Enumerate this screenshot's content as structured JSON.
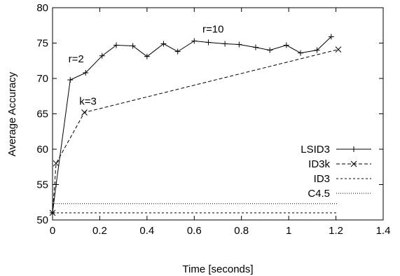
{
  "chart_data": {
    "type": "line",
    "xlabel": "Time [seconds]",
    "ylabel": "Average Accuracy",
    "xlim": [
      0,
      1.4
    ],
    "ylim": [
      50,
      80
    ],
    "xticks": [
      "0",
      "0.2",
      "0.4",
      "0.6",
      "0.8",
      "1",
      "1.2",
      "1.4"
    ],
    "yticks": [
      "50",
      "55",
      "60",
      "65",
      "70",
      "75",
      "80"
    ],
    "grid": false,
    "legend_position": "right",
    "series": [
      {
        "name": "LSID3",
        "style": "solid",
        "marker": "plus",
        "x": [
          0.0,
          0.015,
          0.075,
          0.14,
          0.21,
          0.27,
          0.34,
          0.4,
          0.47,
          0.53,
          0.6,
          0.66,
          0.73,
          0.79,
          0.86,
          0.92,
          0.99,
          1.05,
          1.12,
          1.18
        ],
        "y": [
          51.0,
          55.0,
          69.8,
          70.8,
          73.2,
          74.7,
          74.6,
          73.1,
          74.9,
          73.8,
          75.3,
          75.1,
          74.9,
          74.8,
          74.4,
          74.0,
          74.7,
          73.6,
          74.0,
          75.9
        ]
      },
      {
        "name": "ID3k",
        "style": "dashed",
        "marker": "x",
        "x": [
          0.0,
          0.015,
          0.135,
          1.21
        ],
        "y": [
          51.0,
          58.0,
          65.2,
          74.1
        ]
      },
      {
        "name": "ID3",
        "style": "dashed-short",
        "marker": "none",
        "x": [
          0.0,
          1.21
        ],
        "y": [
          51.0,
          51.0
        ]
      },
      {
        "name": "C4.5",
        "style": "dotted",
        "marker": "none",
        "x": [
          0.0,
          1.21
        ],
        "y": [
          52.3,
          52.3
        ]
      }
    ],
    "annotations": [
      {
        "text": "r=2",
        "x": 0.1,
        "y": 72.3
      },
      {
        "text": "k=3",
        "x": 0.15,
        "y": 66.3
      },
      {
        "text": "r=10",
        "x": 0.68,
        "y": 76.5
      }
    ]
  }
}
